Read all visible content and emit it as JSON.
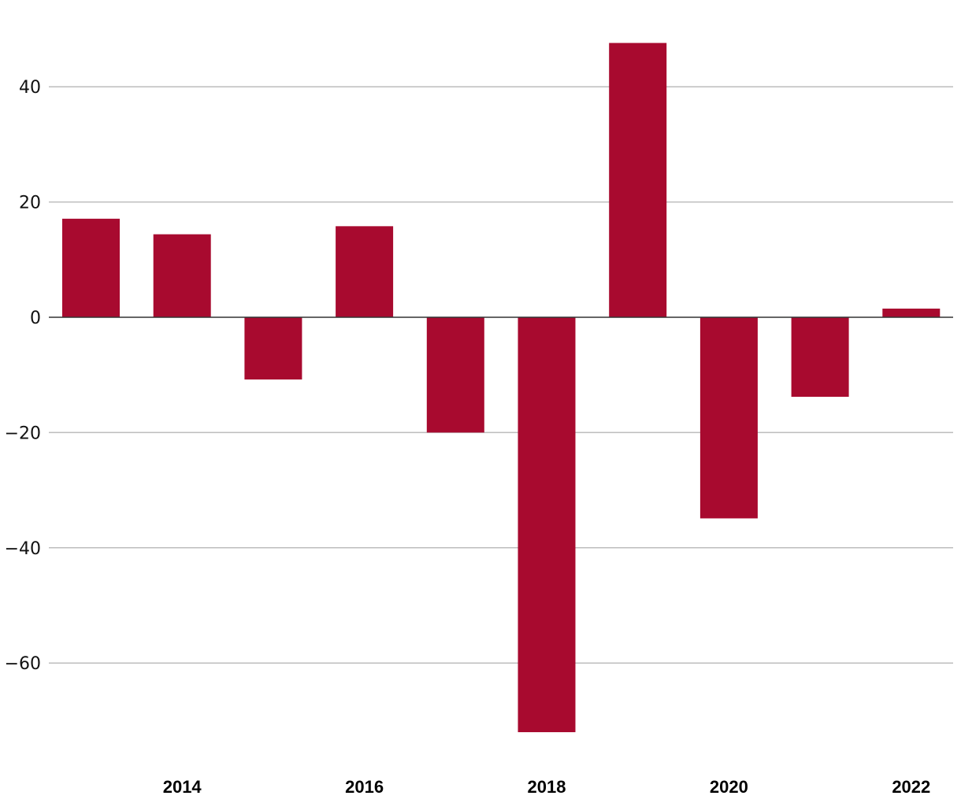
{
  "chart_data": {
    "type": "bar",
    "x": [
      2013,
      2014,
      2015,
      2016,
      2017,
      2018,
      2019,
      2020,
      2021,
      2022
    ],
    "values": [
      17.1,
      14.4,
      -10.8,
      15.8,
      -20.0,
      -72.0,
      47.6,
      -34.9,
      -13.8,
      1.5
    ],
    "ylim": [
      -75,
      48
    ],
    "yticks": [
      40,
      20,
      0,
      -20,
      -40,
      -60
    ],
    "ytick_labels": [
      "40",
      "20",
      "0",
      "−20",
      "−40",
      "−60"
    ],
    "xticks": [
      2014,
      2016,
      2018,
      2020,
      2022
    ],
    "xtick_labels": [
      "2014",
      "2016",
      "2018",
      "2020",
      "2022"
    ],
    "title": "",
    "xlabel": "",
    "ylabel": "",
    "grid": true,
    "colors": {
      "bar": "#a80a2f",
      "grid": "#bdbdbd",
      "zero_line": "#333333"
    }
  }
}
